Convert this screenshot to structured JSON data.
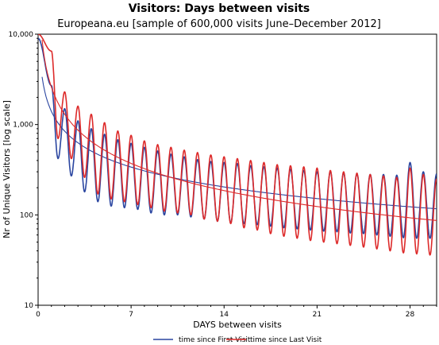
{
  "chart_data": {
    "type": "line",
    "title": "Visitors: Days between visits",
    "subtitle": "Europeana.eu [sample of 600,000 visits June–December 2012]",
    "xlabel": "DAYS between visits",
    "ylabel": "Nr of Unique Visitors [log scale]",
    "xlim": [
      0,
      30
    ],
    "ylim": [
      10,
      10000
    ],
    "yscale": "log",
    "xticks": [
      0,
      7,
      14,
      21,
      28
    ],
    "xtick_labels": [
      "0",
      "7",
      "14",
      "21",
      "28"
    ],
    "yticks": [
      10,
      100,
      1000,
      10000
    ],
    "ytick_labels": [
      "10",
      "100",
      "1,000",
      "10,000"
    ],
    "grid": false,
    "legend_position": "bottom-center",
    "series": [
      {
        "name": "time since First Visit",
        "color": "#2a45a0",
        "trend": {
          "a": 1400,
          "b": -0.73
        },
        "peak_x": [
          1,
          2,
          3,
          4,
          5,
          6,
          7,
          8,
          9,
          10,
          11,
          12,
          13,
          14,
          15,
          16,
          17,
          18,
          19,
          20,
          21,
          22,
          23,
          24,
          25,
          26,
          27,
          28,
          29,
          30
        ],
        "peaks": [
          2700,
          1500,
          1100,
          900,
          780,
          680,
          620,
          560,
          510,
          470,
          440,
          410,
          390,
          380,
          370,
          350,
          340,
          330,
          320,
          310,
          300,
          300,
          290,
          285,
          280,
          280,
          275,
          380,
          300,
          285
        ],
        "trough_x": [
          1.5,
          2.5,
          3.5,
          4.5,
          5.5,
          6.5,
          7.5,
          8.5,
          9.5,
          10.5,
          11.5,
          12.5,
          13.5,
          14.5,
          15.5,
          16.5,
          17.5,
          18.5,
          19.5,
          20.5,
          21.5,
          22.5,
          23.5,
          24.5,
          25.5,
          26.5,
          27.5,
          28.5,
          29.5
        ],
        "troughs": [
          420,
          270,
          180,
          140,
          125,
          120,
          115,
          105,
          100,
          100,
          95,
          90,
          85,
          82,
          80,
          78,
          75,
          72,
          70,
          68,
          66,
          65,
          63,
          62,
          60,
          58,
          56,
          55,
          55
        ],
        "start": 9000
      },
      {
        "name": "time since Last Visit",
        "color": "#dd2a2a",
        "trend": {
          "a": 2600,
          "b": -1.0
        },
        "peak_x": [
          1,
          2,
          3,
          4,
          5,
          6,
          7,
          8,
          9,
          10,
          11,
          12,
          13,
          14,
          15,
          16,
          17,
          18,
          19,
          20,
          21,
          22,
          23,
          24,
          25,
          26,
          27,
          28,
          29,
          30
        ],
        "peaks": [
          6500,
          2300,
          1600,
          1300,
          1050,
          850,
          760,
          660,
          600,
          560,
          520,
          490,
          460,
          440,
          420,
          400,
          380,
          360,
          350,
          340,
          330,
          310,
          300,
          290,
          280,
          270,
          260,
          330,
          280,
          250
        ],
        "trough_x": [
          1.5,
          2.5,
          3.5,
          4.5,
          5.5,
          6.5,
          7.5,
          8.5,
          9.5,
          10.5,
          11.5,
          12.5,
          13.5,
          14.5,
          15.5,
          16.5,
          17.5,
          18.5,
          19.5,
          20.5,
          21.5,
          22.5,
          23.5,
          24.5,
          25.5,
          26.5,
          27.5,
          28.5,
          29.5
        ],
        "troughs": [
          700,
          420,
          260,
          170,
          150,
          140,
          130,
          120,
          110,
          105,
          100,
          90,
          85,
          80,
          72,
          68,
          62,
          58,
          55,
          52,
          50,
          48,
          46,
          44,
          42,
          40,
          38,
          37,
          36
        ],
        "start": 10000
      }
    ]
  }
}
